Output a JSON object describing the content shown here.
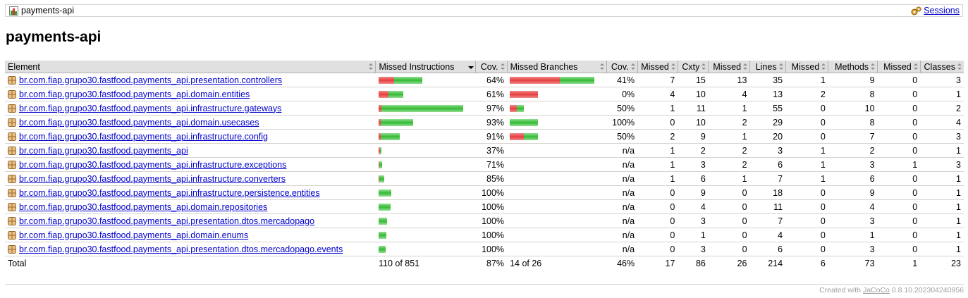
{
  "breadcrumb": {
    "title": "payments-api",
    "sessions_label": "Sessions"
  },
  "page_title": "payments-api",
  "table": {
    "headers": [
      "Element",
      "Missed Instructions",
      "Cov.",
      "Missed Branches",
      "Cov.",
      "Missed",
      "Cxty",
      "Missed",
      "Lines",
      "Missed",
      "Methods",
      "Missed",
      "Classes"
    ],
    "rows": [
      {
        "name": "br.com.fiap.grupo30.fastfood.payments_api.presentation.controllers",
        "instr_missed": 0.36,
        "instr_covered": 0.64,
        "instr_cov": "64%",
        "branch_missed": 0.59,
        "branch_covered": 0.41,
        "branch_cov": "41%",
        "cx_missed": "7",
        "cx": "15",
        "ln_missed": "13",
        "ln": "35",
        "mt_missed": "1",
        "mt": "9",
        "cl_missed": "0",
        "cl": "3"
      },
      {
        "name": "br.com.fiap.grupo30.fastfood.payments_api.domain.entities",
        "instr_missed": 0.39,
        "instr_covered": 0.61,
        "instr_cov": "61%",
        "branch_missed": 1,
        "branch_covered": 0,
        "branch_cov": "0%",
        "cx_missed": "4",
        "cx": "10",
        "ln_missed": "4",
        "ln": "13",
        "mt_missed": "2",
        "mt": "8",
        "cl_missed": "0",
        "cl": "1"
      },
      {
        "name": "br.com.fiap.grupo30.fastfood.payments_api.infrastructure.gateways",
        "instr_missed": 0.03,
        "instr_covered": 0.97,
        "instr_cov": "97%",
        "branch_missed": 0.5,
        "branch_covered": 0.5,
        "branch_cov": "50%",
        "cx_missed": "1",
        "cx": "11",
        "ln_missed": "1",
        "ln": "55",
        "mt_missed": "0",
        "mt": "10",
        "cl_missed": "0",
        "cl": "2"
      },
      {
        "name": "br.com.fiap.grupo30.fastfood.payments_api.domain.usecases",
        "instr_missed": 0.07,
        "instr_covered": 0.93,
        "instr_cov": "93%",
        "branch_missed": 0,
        "branch_covered": 1,
        "branch_cov": "100%",
        "cx_missed": "0",
        "cx": "10",
        "ln_missed": "2",
        "ln": "29",
        "mt_missed": "0",
        "mt": "8",
        "cl_missed": "0",
        "cl": "4"
      },
      {
        "name": "br.com.fiap.grupo30.fastfood.payments_api.infrastructure.config",
        "instr_missed": 0.09,
        "instr_covered": 0.91,
        "instr_cov": "91%",
        "branch_missed": 0.5,
        "branch_covered": 0.5,
        "branch_cov": "50%",
        "cx_missed": "2",
        "cx": "9",
        "ln_missed": "1",
        "ln": "20",
        "mt_missed": "0",
        "mt": "7",
        "cl_missed": "0",
        "cl": "3"
      },
      {
        "name": "br.com.fiap.grupo30.fastfood.payments_api",
        "instr_missed": 0.63,
        "instr_covered": 0.37,
        "instr_cov": "37%",
        "branch_missed": 0,
        "branch_covered": 0,
        "branch_cov": "n/a",
        "cx_missed": "1",
        "cx": "2",
        "ln_missed": "2",
        "ln": "3",
        "mt_missed": "1",
        "mt": "2",
        "cl_missed": "0",
        "cl": "1"
      },
      {
        "name": "br.com.fiap.grupo30.fastfood.payments_api.infrastructure.exceptions",
        "instr_missed": 0.29,
        "instr_covered": 0.71,
        "instr_cov": "71%",
        "branch_missed": 0,
        "branch_covered": 0,
        "branch_cov": "n/a",
        "cx_missed": "1",
        "cx": "3",
        "ln_missed": "2",
        "ln": "6",
        "mt_missed": "1",
        "mt": "3",
        "cl_missed": "1",
        "cl": "3"
      },
      {
        "name": "br.com.fiap.grupo30.fastfood.payments_api.infrastructure.converters",
        "instr_missed": 0.15,
        "instr_covered": 0.85,
        "instr_cov": "85%",
        "branch_missed": 0,
        "branch_covered": 0,
        "branch_cov": "n/a",
        "cx_missed": "1",
        "cx": "6",
        "ln_missed": "1",
        "ln": "7",
        "mt_missed": "1",
        "mt": "6",
        "cl_missed": "0",
        "cl": "1"
      },
      {
        "name": "br.com.fiap.grupo30.fastfood.payments_api.infrastructure.persistence.entities",
        "instr_missed": 0,
        "instr_covered": 1,
        "instr_cov": "100%",
        "branch_missed": 0,
        "branch_covered": 0,
        "branch_cov": "n/a",
        "cx_missed": "0",
        "cx": "9",
        "ln_missed": "0",
        "ln": "18",
        "mt_missed": "0",
        "mt": "9",
        "cl_missed": "0",
        "cl": "1"
      },
      {
        "name": "br.com.fiap.grupo30.fastfood.payments_api.domain.repositories",
        "instr_missed": 0,
        "instr_covered": 1,
        "instr_cov": "100%",
        "branch_missed": 0,
        "branch_covered": 0,
        "branch_cov": "n/a",
        "cx_missed": "0",
        "cx": "4",
        "ln_missed": "0",
        "ln": "11",
        "mt_missed": "0",
        "mt": "4",
        "cl_missed": "0",
        "cl": "1"
      },
      {
        "name": "br.com.fiap.grupo30.fastfood.payments_api.presentation.dtos.mercadopago",
        "instr_missed": 0,
        "instr_covered": 1,
        "instr_cov": "100%",
        "branch_missed": 0,
        "branch_covered": 0,
        "branch_cov": "n/a",
        "cx_missed": "0",
        "cx": "3",
        "ln_missed": "0",
        "ln": "7",
        "mt_missed": "0",
        "mt": "3",
        "cl_missed": "0",
        "cl": "1"
      },
      {
        "name": "br.com.fiap.grupo30.fastfood.payments_api.domain.enums",
        "instr_missed": 0,
        "instr_covered": 1,
        "instr_cov": "100%",
        "branch_missed": 0,
        "branch_covered": 0,
        "branch_cov": "n/a",
        "cx_missed": "0",
        "cx": "1",
        "ln_missed": "0",
        "ln": "4",
        "mt_missed": "0",
        "mt": "1",
        "cl_missed": "0",
        "cl": "1"
      },
      {
        "name": "br.com.fiap.grupo30.fastfood.payments_api.presentation.dtos.mercadopago.events",
        "instr_missed": 0,
        "instr_covered": 1,
        "instr_cov": "100%",
        "branch_missed": 0,
        "branch_covered": 0,
        "branch_cov": "n/a",
        "cx_missed": "0",
        "cx": "3",
        "ln_missed": "0",
        "ln": "6",
        "mt_missed": "0",
        "mt": "3",
        "cl_missed": "0",
        "cl": "1"
      }
    ],
    "total": {
      "label": "Total",
      "instr": "110 of 851",
      "instr_cov": "87%",
      "branch": "14 of 26",
      "branch_cov": "46%",
      "cx_missed": "17",
      "cx": "86",
      "ln_missed": "26",
      "ln": "214",
      "mt_missed": "6",
      "mt": "73",
      "cl_missed": "1",
      "cl": "23"
    }
  },
  "footer": {
    "prefix": "Created with",
    "link": "JaCoCo",
    "version": "0.8.10.202304240956"
  }
}
